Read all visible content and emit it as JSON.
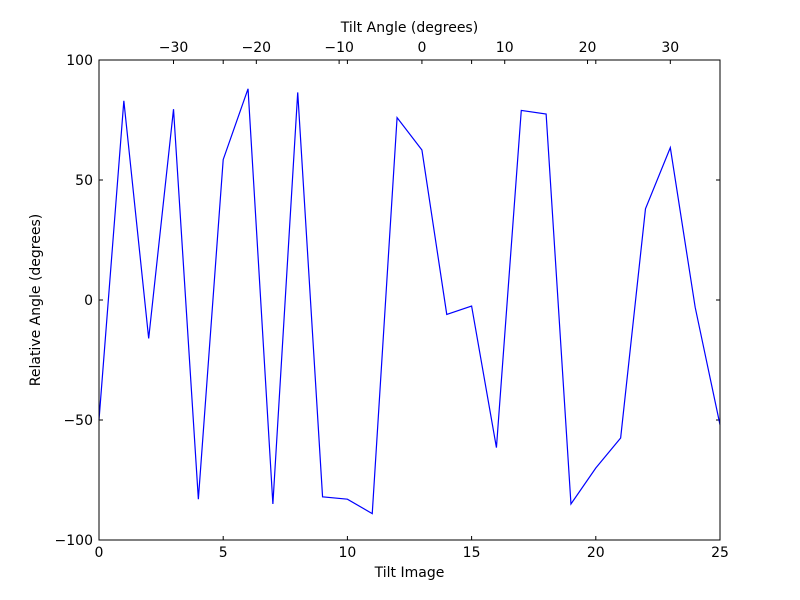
{
  "chart_data": {
    "type": "line",
    "xlabel": "Tilt Image",
    "ylabel": "Relative Angle (degrees)",
    "x2label": "Tilt Angle (degrees)",
    "xlim": [
      0,
      25
    ],
    "ylim": [
      -100,
      100
    ],
    "x2lim": [
      -39,
      36
    ],
    "xticks": [
      0,
      5,
      10,
      15,
      20,
      25
    ],
    "yticks": [
      -100,
      -50,
      0,
      50,
      100
    ],
    "x2ticks": [
      -30,
      -20,
      -10,
      0,
      10,
      20,
      30
    ],
    "x2tick_labels": [
      "−30",
      "−20",
      "−10",
      "0",
      "10",
      "20",
      "30"
    ],
    "ytick_labels": [
      "−100",
      "−50",
      "0",
      "50",
      "100"
    ],
    "xtick_labels": [
      "0",
      "5",
      "10",
      "15",
      "20",
      "25"
    ],
    "grid": false,
    "line_color": "#0000ff",
    "series": [
      {
        "x": [
          0,
          1,
          2,
          3,
          4,
          5,
          6,
          7,
          8,
          9,
          10,
          11,
          12,
          13,
          14,
          15,
          16,
          17,
          18,
          19,
          20,
          21,
          22,
          23,
          24,
          25
        ],
        "values": [
          -50,
          83,
          -16,
          79.5,
          -83,
          58.5,
          88,
          -85,
          86.5,
          -82,
          -83,
          -89,
          76,
          62.5,
          -6,
          -2.5,
          -61.5,
          79,
          77.5,
          -85,
          -70,
          -57.5,
          38,
          63.5,
          -3,
          -52
        ]
      }
    ]
  }
}
